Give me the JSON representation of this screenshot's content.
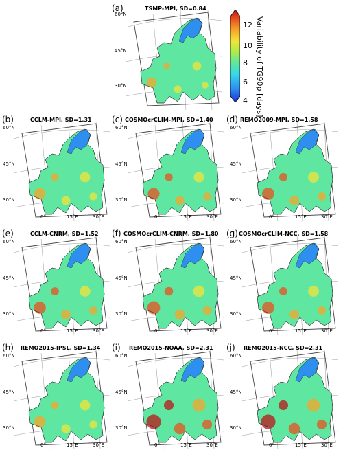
{
  "colorbar": {
    "label": "Variability of TG90p [days]",
    "ticks": [
      "12",
      "10",
      "8",
      "6",
      "4"
    ],
    "colors": [
      "#1f2fd6",
      "#2f8ff0",
      "#38d6e8",
      "#5fe6a0",
      "#b0ea4a",
      "#f2e33a",
      "#f5a52c",
      "#e8501f",
      "#b8151a"
    ]
  },
  "axes": {
    "lat_labels": [
      "60°N",
      "45°N",
      "30°N"
    ],
    "lon_labels": [
      "0°",
      "15°E",
      "30°E"
    ]
  },
  "panels": [
    {
      "letter": "(a)",
      "title": "TSMP-MPI, SD=0.84",
      "sd": 0.84
    },
    {
      "letter": "(b)",
      "title": "CCLM-MPI, SD=1.31",
      "sd": 1.31
    },
    {
      "letter": "(c)",
      "title": "COSMOcrCLIM-MPI, SD=1.40",
      "sd": 1.4
    },
    {
      "letter": "(d)",
      "title": "REMO2009-MPI, SD=1.58",
      "sd": 1.58
    },
    {
      "letter": "(e)",
      "title": "CCLM-CNRM, SD=1.52",
      "sd": 1.52
    },
    {
      "letter": "(f)",
      "title": "COSMOcrCLIM-CNRM, SD=1.80",
      "sd": 1.8
    },
    {
      "letter": "(g)",
      "title": "COSMOcrCLIM-NCC, SD=1.58",
      "sd": 1.58
    },
    {
      "letter": "(h)",
      "title": "REMO2015-IPSL, SD=1.34",
      "sd": 1.34
    },
    {
      "letter": "(i)",
      "title": "REMO2015-NOAA, SD=2.31",
      "sd": 2.31
    },
    {
      "letter": "(j)",
      "title": "REMO2015-NCC, SD=2.31",
      "sd": 2.31
    }
  ]
}
